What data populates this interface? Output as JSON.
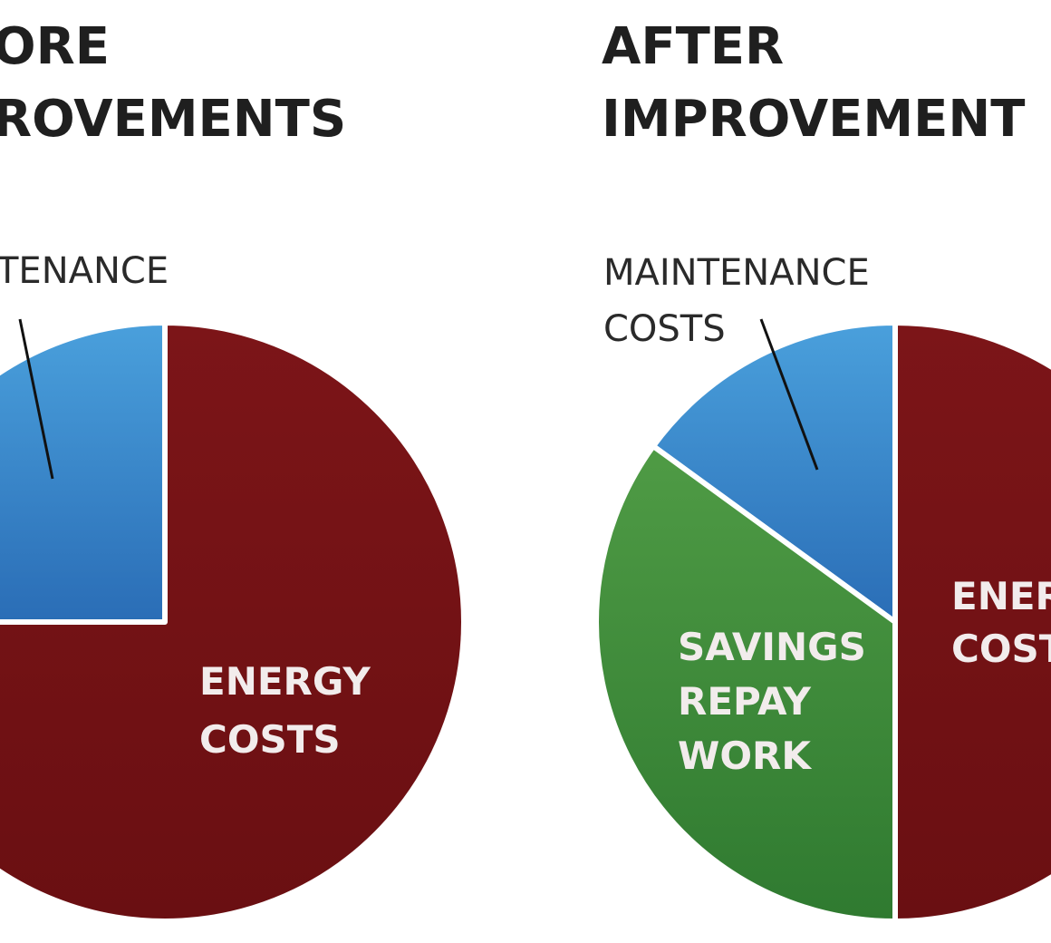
{
  "chart_data": [
    {
      "type": "pie",
      "title": "BEFORE IMPROVEMENTS",
      "visible_title": [
        "ORE",
        "ROVEMENTS"
      ],
      "slices": [
        {
          "key": "maintenance",
          "label": "MAINTENANCE",
          "visible_label": [
            "TENANCE"
          ],
          "value": 25,
          "color": "#2f7fc4"
        },
        {
          "key": "energy",
          "label": "ENERGY COSTS",
          "visible_label": [
            "ENERGY",
            "COSTS"
          ],
          "value": 75,
          "color": "#7a1416"
        }
      ]
    },
    {
      "type": "pie",
      "title": "AFTER IMPROVEMENTS",
      "visible_title": [
        "AFTER",
        "IMPROVEMENT"
      ],
      "slices": [
        {
          "key": "maintenance",
          "label": "MAINTENANCE COSTS",
          "visible_label": [
            "MAINTENANCE",
            "COSTS"
          ],
          "value": 15,
          "color": "#2f7fc4"
        },
        {
          "key": "energy",
          "label": "ENERGY COSTS",
          "visible_label": [
            "ENER",
            "COST"
          ],
          "value": 50,
          "color": "#7a1416"
        },
        {
          "key": "savings",
          "label": "SAVINGS REPAY WORK",
          "visible_label": [
            "SAVINGS",
            "REPAY",
            "WORK"
          ],
          "value": 35,
          "color": "#3f8a38"
        }
      ]
    }
  ]
}
